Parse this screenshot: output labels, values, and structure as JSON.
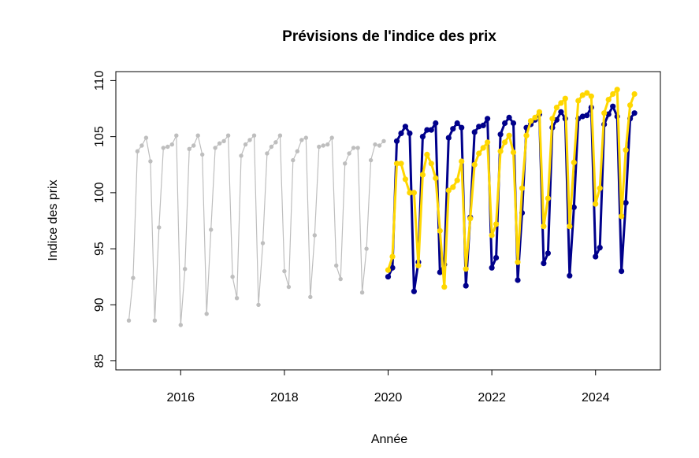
{
  "chart_data": {
    "type": "line",
    "title": "Prévisions de l'indice des prix",
    "xlabel": "Année",
    "ylabel": "Indice des prix",
    "xlim": [
      2014.75,
      2025.25
    ],
    "ylim": [
      84.2,
      110.8
    ],
    "x_ticks": [
      2016,
      2018,
      2020,
      2022,
      2024
    ],
    "y_ticks": [
      85,
      90,
      95,
      100,
      105,
      110
    ],
    "grid": false,
    "legend": "none",
    "series": [
      {
        "color": "#bebebe",
        "x_start": 2015.0,
        "step": 0.0833333,
        "values": [
          88.6,
          92.4,
          103.7,
          104.2,
          104.9,
          102.8,
          88.6,
          96.9,
          104.0,
          104.1,
          104.3,
          105.1,
          88.2,
          93.2,
          103.9,
          104.2,
          105.1,
          103.4,
          89.2,
          96.7,
          104.0,
          104.4,
          104.6,
          105.1,
          92.5,
          90.6,
          103.3,
          104.3,
          104.7,
          105.1,
          90.0,
          95.5,
          103.5,
          104.1,
          104.5,
          105.1,
          93.0,
          91.6,
          102.9,
          103.7,
          104.7,
          104.9,
          90.7,
          96.2,
          104.1,
          104.2,
          104.3,
          104.9,
          93.5,
          92.3,
          102.6,
          103.5,
          104.0,
          104.0,
          91.1,
          95.0,
          102.9,
          104.3,
          104.2,
          104.6
        ]
      },
      {
        "color": "#00008b",
        "x_start": 2020.0,
        "step": 0.0833333,
        "values": [
          92.5,
          93.3,
          104.6,
          105.3,
          105.9,
          105.3,
          91.2,
          93.8,
          105.0,
          105.6,
          105.6,
          106.2,
          92.9,
          93.6,
          104.9,
          105.7,
          106.2,
          105.8,
          91.7,
          97.8,
          105.4,
          105.9,
          106.0,
          106.6,
          93.3,
          94.2,
          105.2,
          106.2,
          106.7,
          106.2,
          92.2,
          98.2,
          105.8,
          106.1,
          106.5,
          107.0,
          93.7,
          94.6,
          105.8,
          106.5,
          107.2,
          106.6,
          92.6,
          98.7,
          106.6,
          106.8,
          106.9,
          107.6,
          94.3,
          95.1,
          106.1,
          107.0,
          107.7,
          106.8,
          93.0,
          99.1,
          106.6,
          107.1
        ]
      },
      {
        "color": "#ffd700",
        "x_start": 2020.0,
        "step": 0.0833333,
        "values": [
          93.1,
          94.3,
          102.6,
          102.6,
          101.2,
          100.0,
          100.0,
          93.5,
          101.6,
          103.4,
          102.6,
          101.3,
          96.6,
          91.6,
          100.2,
          100.5,
          101.1,
          102.8,
          93.2,
          97.7,
          102.5,
          103.5,
          104.0,
          104.5,
          96.2,
          97.2,
          103.7,
          104.5,
          105.1,
          103.6,
          93.8,
          100.4,
          105.1,
          106.4,
          106.7,
          107.2,
          97.0,
          99.5,
          106.6,
          107.6,
          108.0,
          108.4,
          97.0,
          102.7,
          108.2,
          108.7,
          108.9,
          108.6,
          99.0,
          100.4,
          107.1,
          108.3,
          108.8,
          109.2,
          97.9,
          103.8,
          107.8,
          108.8
        ]
      }
    ]
  }
}
